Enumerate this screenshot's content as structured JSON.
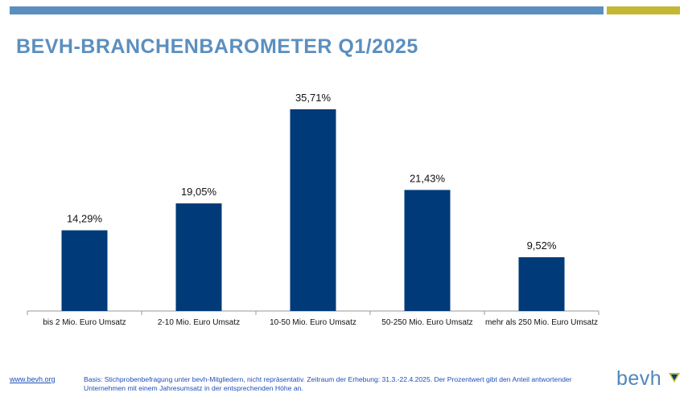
{
  "header": {
    "title": "BEVH-BRANCHENBAROMETER Q1/2025"
  },
  "colors": {
    "accent_blue": "#5b8fbf",
    "accent_gold": "#c4b733",
    "bar": "#003a78"
  },
  "chart_data": {
    "type": "bar",
    "categories": [
      "bis 2 Mio. Euro Umsatz",
      "2-10 Mio. Euro Umsatz",
      "10-50 Mio. Euro Umsatz",
      "50-250 Mio. Euro Umsatz",
      "mehr als 250 Mio. Euro Umsatz"
    ],
    "values": [
      14.29,
      19.05,
      35.71,
      21.43,
      9.52
    ],
    "data_labels": [
      "14,29%",
      "19,05%",
      "35,71%",
      "21,43%",
      "9,52%"
    ],
    "ylim": [
      0,
      40
    ],
    "grid": false,
    "legend": "none"
  },
  "footer": {
    "link": "www.bevh.org",
    "note": "Basis: Stichprobenbefragung unter bevh-Mitgliedern, nicht repräsentativ. Zeitraum der Erhebung: 31.3.-22.4.2025. Der Prozentwert gibt den Anteil antwortender Unternehmen mit einem Jahresumsatz in der entsprechenden Höhe an."
  },
  "logo": {
    "text": "bevh",
    "icon": "bevh-logo-mark-icon"
  }
}
